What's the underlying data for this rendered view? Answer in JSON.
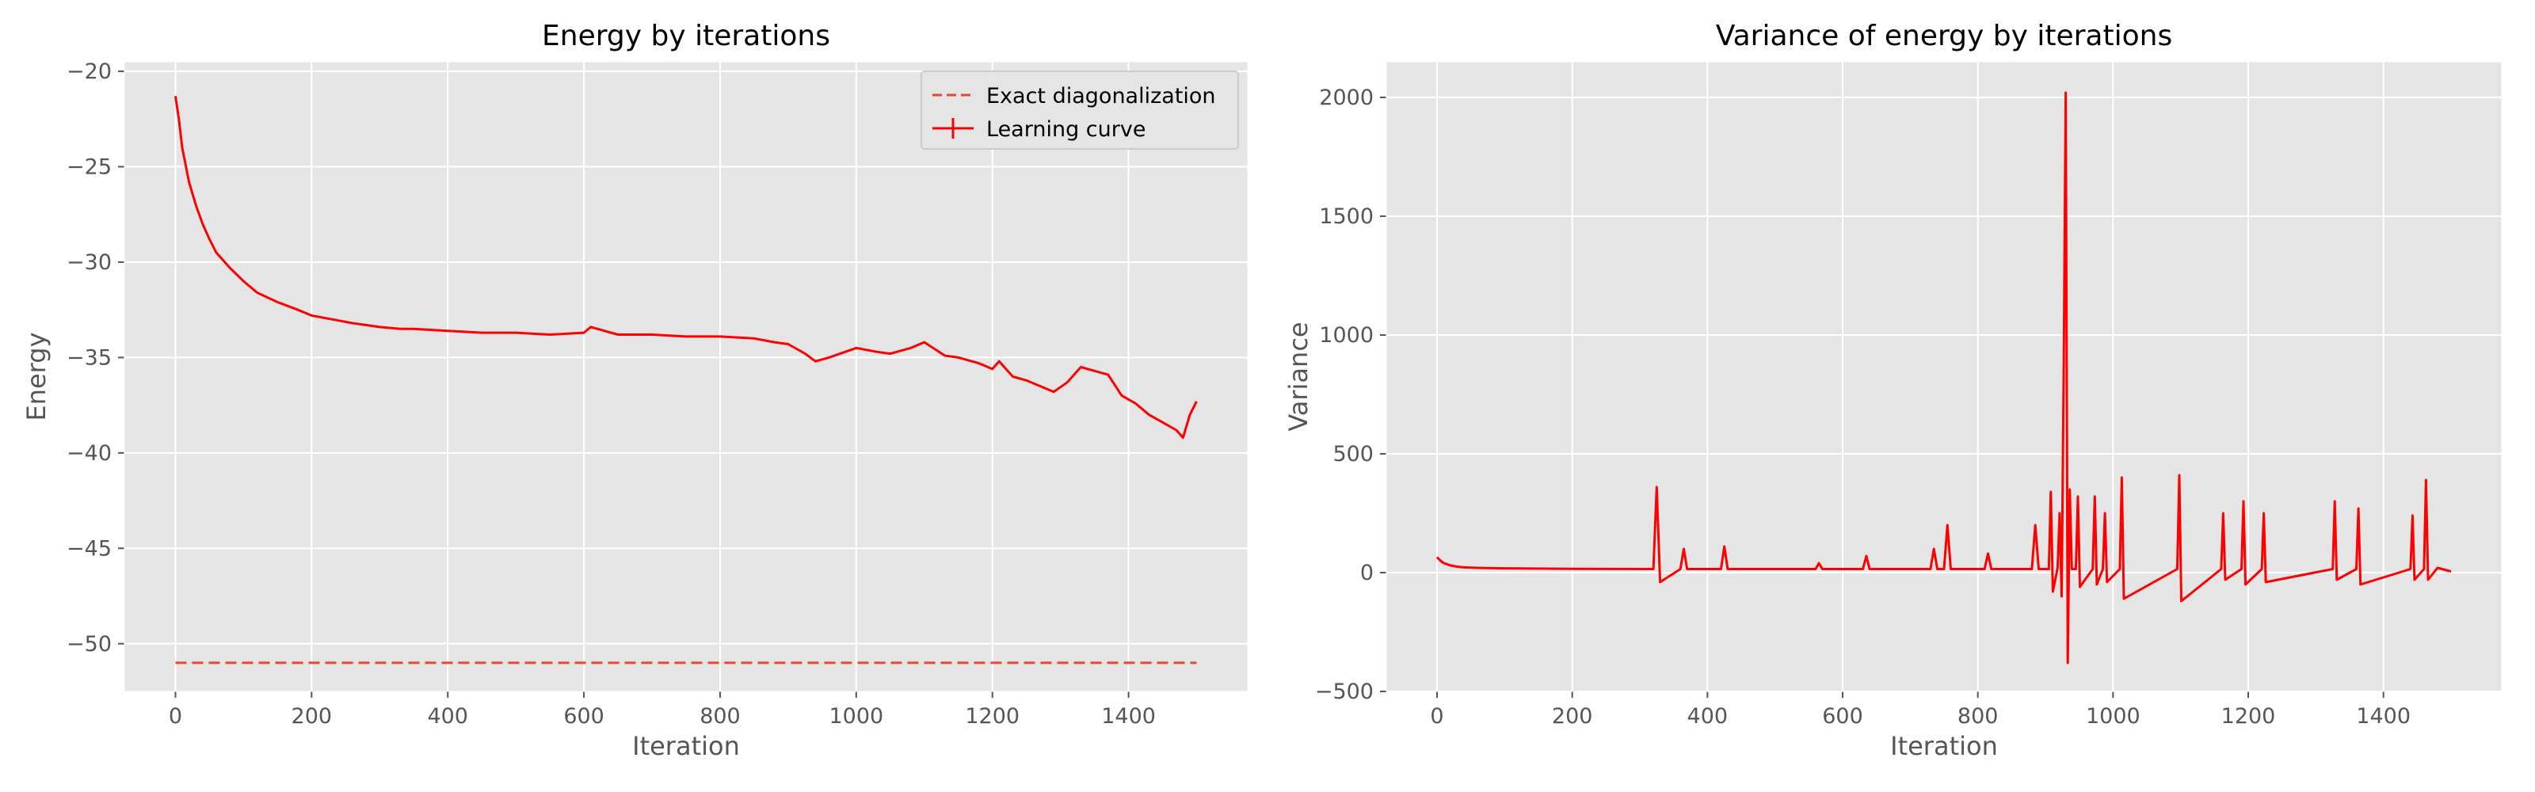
{
  "colors": {
    "plot_bg": "#e5e5e5",
    "grid": "#ffffff",
    "line": "#ff0000",
    "exact": "#e24a33",
    "text": "#555555"
  },
  "chart_data": [
    {
      "type": "line",
      "title": "Energy by iterations",
      "xlabel": "Iteration",
      "ylabel": "Energy",
      "xlim": [
        -75,
        1575
      ],
      "ylim": [
        -52.5,
        -19.5
      ],
      "xticks": [
        0,
        200,
        400,
        600,
        800,
        1000,
        1200,
        1400
      ],
      "yticks": [
        -50,
        -45,
        -40,
        -35,
        -30,
        -25,
        -20
      ],
      "xtick_labels": [
        "0",
        "200",
        "400",
        "600",
        "800",
        "1000",
        "1200",
        "1400"
      ],
      "ytick_labels": [
        "−50",
        "−45",
        "−40",
        "−35",
        "−30",
        "−25",
        "−20"
      ],
      "grid": true,
      "legend_position": "top-right",
      "legend": [
        "Exact diagonalization",
        "Learning curve"
      ],
      "series": [
        {
          "name": "Exact diagonalization",
          "style": "dashed",
          "x": [
            0,
            1500
          ],
          "y": [
            -51.0,
            -51.0
          ]
        },
        {
          "name": "Learning curve",
          "style": "solid",
          "x": [
            0,
            5,
            10,
            20,
            30,
            40,
            50,
            60,
            80,
            100,
            120,
            150,
            180,
            200,
            230,
            260,
            300,
            330,
            350,
            400,
            450,
            500,
            550,
            600,
            610,
            650,
            700,
            750,
            800,
            850,
            880,
            900,
            925,
            940,
            960,
            1000,
            1030,
            1050,
            1080,
            1100,
            1130,
            1150,
            1180,
            1200,
            1210,
            1230,
            1250,
            1270,
            1290,
            1310,
            1330,
            1350,
            1370,
            1390,
            1410,
            1430,
            1450,
            1470,
            1480,
            1490,
            1500
          ],
          "y": [
            -21.3,
            -22.5,
            -24.0,
            -25.8,
            -27.0,
            -28.0,
            -28.8,
            -29.5,
            -30.3,
            -31.0,
            -31.6,
            -32.1,
            -32.5,
            -32.8,
            -33.0,
            -33.2,
            -33.4,
            -33.5,
            -33.5,
            -33.6,
            -33.7,
            -33.7,
            -33.8,
            -33.7,
            -33.4,
            -33.8,
            -33.8,
            -33.9,
            -33.9,
            -34.0,
            -34.2,
            -34.3,
            -34.8,
            -35.2,
            -35.0,
            -34.5,
            -34.7,
            -34.8,
            -34.5,
            -34.2,
            -34.9,
            -35.0,
            -35.3,
            -35.6,
            -35.2,
            -36.0,
            -36.2,
            -36.5,
            -36.8,
            -36.3,
            -35.5,
            -35.7,
            -35.9,
            -37.0,
            -37.4,
            -38.0,
            -38.4,
            -38.8,
            -39.2,
            -38.0,
            -37.3
          ]
        }
      ]
    },
    {
      "type": "line",
      "title": "Variance of energy by iterations",
      "xlabel": "Iteration",
      "ylabel": "Variance",
      "xlim": [
        -75,
        1575
      ],
      "ylim": [
        -500,
        2150
      ],
      "xticks": [
        0,
        200,
        400,
        600,
        800,
        1000,
        1200,
        1400
      ],
      "yticks": [
        -500,
        0,
        500,
        1000,
        1500,
        2000
      ],
      "xtick_labels": [
        "0",
        "200",
        "400",
        "600",
        "800",
        "1000",
        "1200",
        "1400"
      ],
      "ytick_labels": [
        "−500",
        "0",
        "500",
        "1000",
        "1500",
        "2000"
      ],
      "grid": true,
      "series": [
        {
          "name": "",
          "style": "solid",
          "x": [
            0,
            5,
            10,
            20,
            30,
            40,
            60,
            100,
            200,
            320,
            325,
            330,
            360,
            365,
            370,
            420,
            425,
            430,
            560,
            565,
            570,
            630,
            635,
            640,
            730,
            735,
            740,
            750,
            755,
            760,
            810,
            815,
            820,
            880,
            885,
            890,
            905,
            908,
            911,
            918,
            921,
            924,
            927,
            930,
            933,
            936,
            939,
            945,
            948,
            951,
            970,
            973,
            976,
            985,
            988,
            991,
            1010,
            1013,
            1016,
            1095,
            1098,
            1101,
            1160,
            1163,
            1166,
            1190,
            1193,
            1196,
            1220,
            1223,
            1226,
            1325,
            1328,
            1331,
            1360,
            1363,
            1366,
            1440,
            1443,
            1446,
            1460,
            1463,
            1466,
            1480,
            1500
          ],
          "y": [
            65,
            50,
            40,
            30,
            25,
            22,
            20,
            18,
            16,
            15,
            360,
            -40,
            15,
            100,
            15,
            15,
            110,
            15,
            15,
            40,
            15,
            15,
            70,
            15,
            15,
            100,
            15,
            15,
            200,
            15,
            15,
            80,
            15,
            15,
            200,
            15,
            15,
            340,
            -80,
            20,
            250,
            -100,
            820,
            2020,
            -380,
            350,
            15,
            15,
            320,
            -60,
            15,
            320,
            -50,
            15,
            250,
            -40,
            15,
            400,
            -110,
            15,
            410,
            -120,
            15,
            250,
            -30,
            15,
            300,
            -50,
            15,
            250,
            -40,
            15,
            300,
            -30,
            15,
            270,
            -50,
            15,
            240,
            -30,
            15,
            390,
            -30,
            20,
            5
          ]
        }
      ]
    }
  ]
}
